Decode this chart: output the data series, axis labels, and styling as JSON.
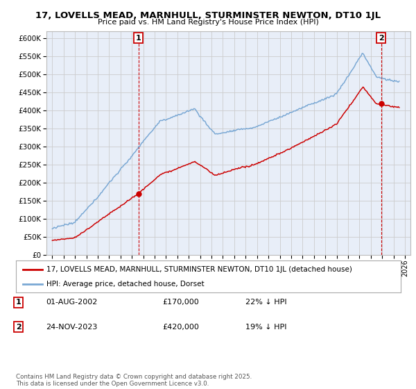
{
  "title": "17, LOVELLS MEAD, MARNHULL, STURMINSTER NEWTON, DT10 1JL",
  "subtitle": "Price paid vs. HM Land Registry's House Price Index (HPI)",
  "background_color": "#ffffff",
  "grid_color": "#cccccc",
  "plot_bg": "#e8eef8",
  "red_color": "#cc0000",
  "blue_color": "#7aa8d4",
  "legend_line1": "17, LOVELLS MEAD, MARNHULL, STURMINSTER NEWTON, DT10 1JL (detached house)",
  "legend_line2": "HPI: Average price, detached house, Dorset",
  "note1_num": "1",
  "note1_date": "01-AUG-2002",
  "note1_price": "£170,000",
  "note1_pct": "22% ↓ HPI",
  "note2_num": "2",
  "note2_date": "24-NOV-2023",
  "note2_price": "£420,000",
  "note2_pct": "19% ↓ HPI",
  "footer": "Contains HM Land Registry data © Crown copyright and database right 2025.\nThis data is licensed under the Open Government Licence v3.0.",
  "ylim": [
    0,
    620000
  ],
  "yticks": [
    0,
    50000,
    100000,
    150000,
    200000,
    250000,
    300000,
    350000,
    400000,
    450000,
    500000,
    550000,
    600000
  ],
  "xmin": 1994.5,
  "xmax": 2026.5,
  "sale1_x": 2002.583,
  "sale1_y": 170000,
  "sale2_x": 2023.9,
  "sale2_y": 420000
}
